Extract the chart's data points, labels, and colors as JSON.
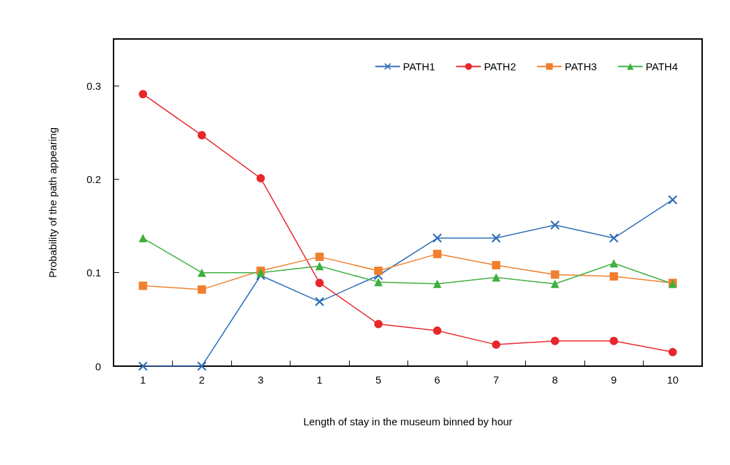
{
  "chart_data": {
    "type": "line",
    "xlabel": "Length of stay in the museum binned by hour",
    "ylabel": "Probability of the path appearing",
    "categories": [
      "1",
      "2",
      "3",
      "1",
      "5",
      "6",
      "7",
      "8",
      "9",
      "10"
    ],
    "series": [
      {
        "name": "PATH1",
        "color": "#2b6cb5",
        "marker": "cross",
        "values": [
          0,
          0,
          0.097,
          0.069,
          0.097,
          0.137,
          0.137,
          0.151,
          0.137,
          0.178
        ]
      },
      {
        "name": "PATH2",
        "color": "#e8262b",
        "marker": "circle",
        "values": [
          0.291,
          0.247,
          0.201,
          0.089,
          0.045,
          0.038,
          0.023,
          0.027,
          0.027,
          0.015
        ]
      },
      {
        "name": "PATH3",
        "color": "#f07f2d",
        "marker": "square",
        "values": [
          0.086,
          0.082,
          0.102,
          0.117,
          0.102,
          0.12,
          0.108,
          0.098,
          0.096,
          0.089
        ]
      },
      {
        "name": "PATH4",
        "color": "#3daf3e",
        "marker": "triangle",
        "values": [
          0.137,
          0.1,
          0.1,
          0.107,
          0.09,
          0.088,
          0.095,
          0.088,
          0.11,
          0.088
        ]
      }
    ],
    "ylim": [
      0,
      0.35
    ],
    "yticks": [
      0,
      0.1,
      0.2,
      0.3
    ],
    "grid": false,
    "legend": "top right",
    "line_style": "solid"
  }
}
